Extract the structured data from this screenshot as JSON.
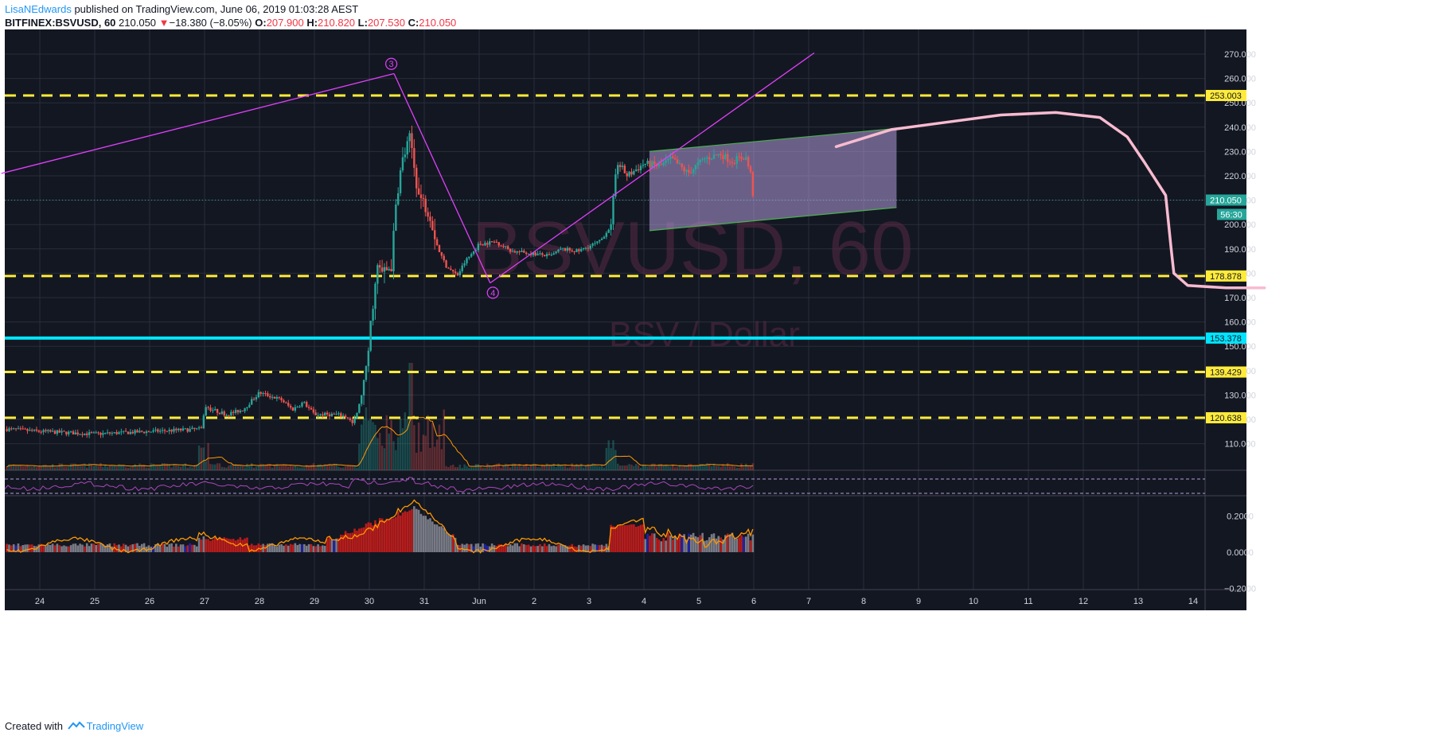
{
  "header": {
    "author": "LisaNEdwards",
    "published_text": "published on TradingView.com, June 06, 2019 01:03:28 AEST",
    "symbol": "BITFINEX:BSVUSD, 60",
    "last": "210.050",
    "change_arrow": "▼",
    "change": "−18.380 (−8.05%)",
    "o_label": "O:",
    "o_value": "207.900",
    "h_label": "H:",
    "h_value": "210.820",
    "l_label": "L:",
    "l_value": "207.530",
    "c_label": "C:",
    "c_value": "210.050"
  },
  "watermark": {
    "symbol": "BSVUSD, 60",
    "description": "BSV / Dollar"
  },
  "footer": {
    "created_with": "Created with",
    "brand": "TradingView"
  },
  "colors": {
    "background": "#131722",
    "grid": "#2a2e39",
    "up": "#26a69a",
    "down": "#ef5350",
    "support_line": "#ffeb3b",
    "key_line": "#00e5ff",
    "trendline": "#e040fb",
    "channel_border": "#4caf50",
    "channel_fill": "#b39ddb",
    "projection": "#f8bbd0"
  },
  "chart_data": {
    "type": "candlestick",
    "symbol": "BITFINEX:BSVUSD",
    "interval": "60",
    "x_tick_labels": [
      "24",
      "25",
      "26",
      "27",
      "28",
      "29",
      "30",
      "31",
      "Jun",
      "2",
      "3",
      "4",
      "5",
      "6",
      "7",
      "8",
      "9",
      "10",
      "11",
      "12",
      "13",
      "14"
    ],
    "price_axis": {
      "ylim": [
        93,
        283
      ],
      "tick_labels": [
        "270.000",
        "260.000",
        "250.000",
        "240.000",
        "230.000",
        "220.000",
        "210.000",
        "200.000",
        "190.000",
        "180.000",
        "170.000",
        "160.000",
        "150.000",
        "140.000",
        "130.000",
        "120.000",
        "110.000"
      ],
      "tick_values": [
        270,
        260,
        250,
        240,
        230,
        220,
        210,
        200,
        190,
        180,
        170,
        160,
        150,
        140,
        130,
        120,
        110
      ]
    },
    "price_labels": [
      {
        "value": 253.003,
        "label": "253.003",
        "kind": "support"
      },
      {
        "value": 210.05,
        "label": "210.050",
        "kind": "last"
      },
      {
        "value": 178.878,
        "label": "178.878",
        "kind": "support"
      },
      {
        "value": 153.378,
        "label": "153.378",
        "kind": "key"
      },
      {
        "value": 139.429,
        "label": "139.429",
        "kind": "support"
      },
      {
        "value": 120.638,
        "label": "120.638",
        "kind": "support"
      }
    ],
    "countdown_label": "56:30",
    "price_path": [
      [
        23.4,
        116
      ],
      [
        24,
        115
      ],
      [
        25,
        114
      ],
      [
        26,
        115
      ],
      [
        26.95,
        116
      ],
      [
        27,
        125
      ],
      [
        27.4,
        122
      ],
      [
        27.7,
        124
      ],
      [
        28,
        131
      ],
      [
        28.4,
        128
      ],
      [
        28.6,
        124
      ],
      [
        28.8,
        127
      ],
      [
        29,
        122
      ],
      [
        29.4,
        122
      ],
      [
        29.6,
        121
      ],
      [
        29.7,
        118
      ],
      [
        29.8,
        124
      ],
      [
        29.95,
        140
      ],
      [
        30.05,
        165
      ],
      [
        30.15,
        182
      ],
      [
        30.25,
        180
      ],
      [
        30.4,
        183
      ],
      [
        30.5,
        212
      ],
      [
        30.6,
        226
      ],
      [
        30.75,
        236
      ],
      [
        30.8,
        226
      ],
      [
        30.9,
        212
      ],
      [
        31.1,
        205
      ],
      [
        31.25,
        190
      ],
      [
        31.4,
        183
      ],
      [
        31.6,
        179
      ],
      [
        31.75,
        185
      ],
      [
        31.9,
        189
      ],
      [
        32,
        192
      ],
      [
        32.3,
        193
      ],
      [
        32.6,
        189
      ],
      [
        33,
        188
      ],
      [
        33.3,
        187
      ],
      [
        33.5,
        190
      ],
      [
        33.8,
        189
      ],
      [
        34.2,
        193
      ],
      [
        34.4,
        200
      ],
      [
        34.5,
        226
      ],
      [
        34.7,
        220
      ],
      [
        35,
        225
      ],
      [
        35.3,
        224
      ],
      [
        35.5,
        227
      ],
      [
        35.8,
        221
      ],
      [
        36.1,
        227
      ],
      [
        36.4,
        229
      ],
      [
        36.6,
        226
      ],
      [
        36.85,
        228
      ],
      [
        36.95,
        220
      ],
      [
        37,
        209
      ]
    ],
    "volume_bars_est": "relative volume shown as bar heights",
    "indicators": {
      "oscillator_1": {
        "band_upper": "dashed",
        "band_lower": "dashed"
      },
      "oscillator_2": {
        "tick_labels": [
          "0.2000",
          "0.0000",
          "−0.2000"
        ],
        "tick_values": [
          0.2,
          0.0,
          -0.2
        ],
        "ylim": [
          -0.21,
          0.28
        ]
      }
    },
    "horizontal_lines": [
      {
        "value": 253.003,
        "style": "dashed",
        "color": "#ffeb3b"
      },
      {
        "value": 178.878,
        "style": "dashed",
        "color": "#ffeb3b"
      },
      {
        "value": 153.378,
        "style": "solid",
        "color": "#00e5ff"
      },
      {
        "value": 139.429,
        "style": "dashed",
        "color": "#ffeb3b"
      },
      {
        "value": 120.638,
        "style": "dashed",
        "color": "#ffeb3b"
      }
    ],
    "annotations": [
      {
        "text": "3",
        "x": 30.4,
        "y": 266,
        "type": "wave-label"
      },
      {
        "text": "4",
        "x": 32.25,
        "y": 172,
        "type": "wave-label"
      }
    ],
    "trendlines": [
      {
        "from": [
          23.3,
          221
        ],
        "to": [
          30.45,
          262
        ]
      },
      {
        "from": [
          30.45,
          262
        ],
        "to": [
          32.2,
          176
        ]
      },
      {
        "from": [
          32.2,
          176
        ],
        "to": [
          38.1,
          270.5
        ]
      }
    ],
    "channel": {
      "upper": [
        [
          35.1,
          230
        ],
        [
          39.6,
          239.5
        ]
      ],
      "lower": [
        [
          35.1,
          197.5
        ],
        [
          39.6,
          207
        ]
      ]
    },
    "projection_path": [
      [
        38.5,
        232
      ],
      [
        39.5,
        239
      ],
      [
        40.5,
        242
      ],
      [
        41.5,
        245
      ],
      [
        42.5,
        246
      ],
      [
        43.3,
        244
      ],
      [
        43.8,
        236
      ],
      [
        44.1,
        226
      ],
      [
        44.3,
        219
      ],
      [
        44.5,
        212
      ],
      [
        44.6,
        190
      ],
      [
        44.65,
        180
      ],
      [
        44.9,
        175
      ],
      [
        45.6,
        174
      ],
      [
        46.3,
        174
      ]
    ]
  }
}
